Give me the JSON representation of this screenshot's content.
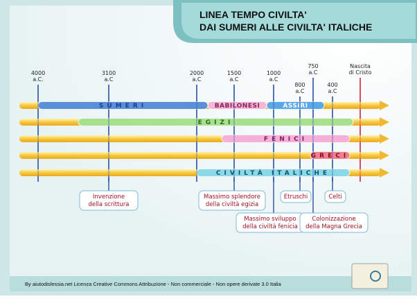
{
  "title": {
    "lines": [
      "LINEA TEMPO CIVILTA'",
      "DAI SUMERI ALLE CIVILTA' ITALICHE"
    ]
  },
  "markers": [
    {
      "lines": [
        "4000",
        "a.C."
      ]
    },
    {
      "lines": [
        "3100",
        "a.C"
      ]
    },
    {
      "lines": [
        "2000",
        "a.C"
      ]
    },
    {
      "lines": [
        "1500",
        "a.C"
      ]
    },
    {
      "lines": [
        "1000",
        "a.C"
      ]
    },
    {
      "lines": [
        "800",
        "a.C"
      ]
    },
    {
      "lines": [
        "750",
        "a.C"
      ]
    },
    {
      "lines": [
        "400",
        "a.C"
      ]
    },
    {
      "lines": [
        "Nascita",
        "di Cristo"
      ]
    }
  ],
  "bands": [
    {
      "segments": [
        "SUMERI",
        "BABILONESI",
        "ASSIRI"
      ]
    },
    {
      "segments": [
        "EGIZI"
      ]
    },
    {
      "segments": [
        "FENICI"
      ]
    },
    {
      "segments": [
        "GRECI"
      ]
    },
    {
      "segments": [
        "CIVILTÀ ITALICHE"
      ]
    }
  ],
  "events": [
    {
      "lines": [
        "Invenzione",
        "della scrittura"
      ]
    },
    {
      "lines": [
        "Massimo splendore",
        "della civiltà egizia"
      ]
    },
    {
      "lines": [
        "Massimo sviluppo",
        "della civiltà fenicia"
      ]
    },
    {
      "lines": [
        "Etruschi"
      ]
    },
    {
      "lines": [
        "Colonizzazione",
        "della Magna Grecia"
      ]
    },
    {
      "lines": [
        "Celti"
      ]
    }
  ],
  "footer": "By aiutodislessia.net Licenza Creative Commons Attribuzione - Non commerciale - Non opere derivate 3.0 Italia"
}
